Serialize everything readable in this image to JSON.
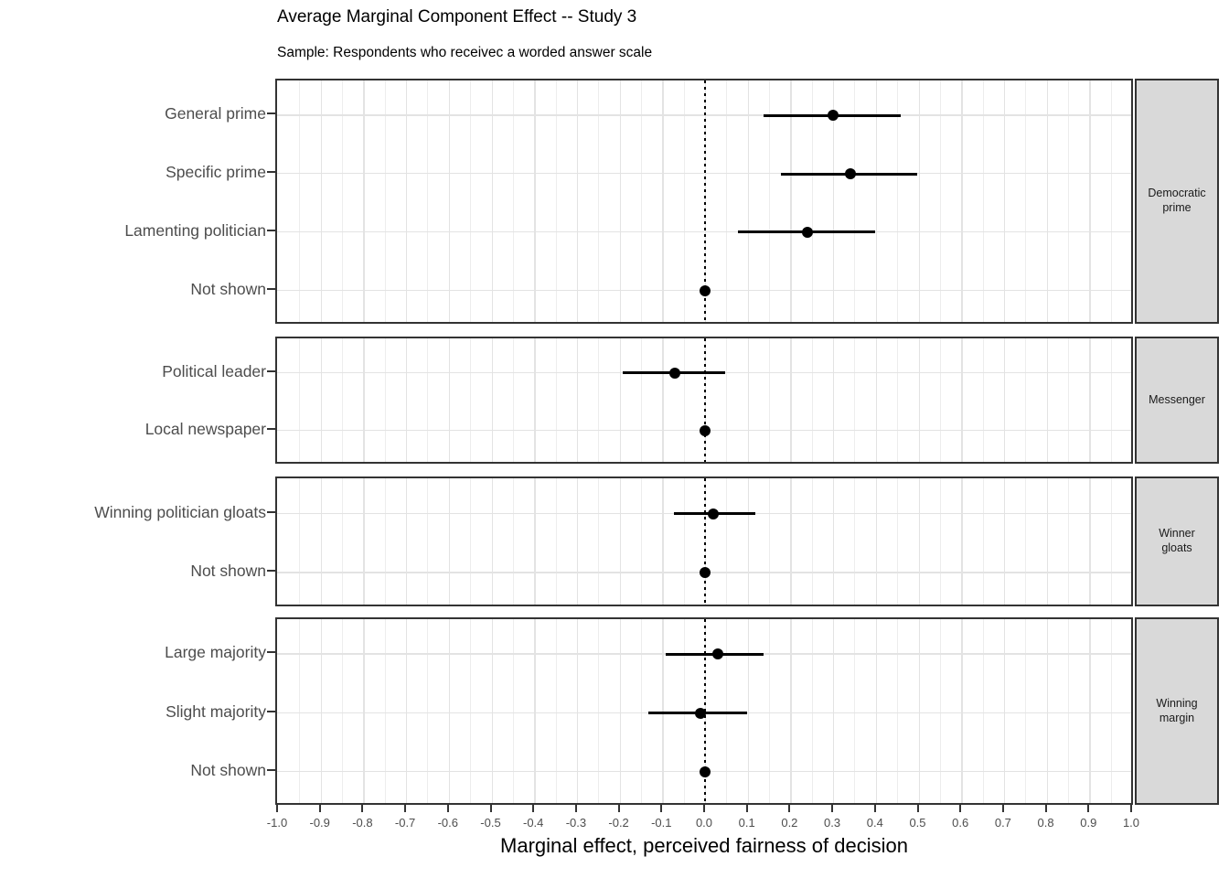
{
  "chart": {
    "title": "Average Marginal Component Effect -- Study 3",
    "subtitle": "Sample: Respondents who receivec a worded answer scale",
    "x_axis_label": "Marginal effect, perceived fairness of decision"
  },
  "chart_data": {
    "type": "scatter",
    "subtype": "coefficient-plot-with-error-bars",
    "title": "Average Marginal Component Effect -- Study 3",
    "subtitle": "Sample: Respondents who receivec a worded answer scale",
    "xlabel": "Marginal effect, perceived fairness of decision",
    "ylabel": "",
    "legend": "none",
    "grid": "major vertical every 0.1, minor every 0.05, horizontal line per row",
    "zero_reference_line": 0.0,
    "x_axis": {
      "min": -1.0,
      "max": 1.0,
      "step": 0.1,
      "tick_decimals": 1
    },
    "facets": [
      {
        "label": "Democratic prime",
        "strip_lines": [
          "Democratic",
          "prime"
        ],
        "rows": [
          {
            "label": "General prime",
            "estimate": 0.3,
            "ci_low": 0.14,
            "ci_high": 0.46
          },
          {
            "label": "Specific prime",
            "estimate": 0.34,
            "ci_low": 0.18,
            "ci_high": 0.5
          },
          {
            "label": "Lamenting politician",
            "estimate": 0.24,
            "ci_low": 0.08,
            "ci_high": 0.4
          },
          {
            "label": "Not shown",
            "estimate": 0.0,
            "ci_low": 0.0,
            "ci_high": 0.0
          }
        ]
      },
      {
        "label": "Messenger",
        "strip_lines": [
          "Messenger"
        ],
        "rows": [
          {
            "label": "Political leader",
            "estimate": -0.07,
            "ci_low": -0.19,
            "ci_high": 0.05
          },
          {
            "label": "Local newspaper",
            "estimate": 0.0,
            "ci_low": 0.0,
            "ci_high": 0.0
          }
        ]
      },
      {
        "label": "Winner gloats",
        "strip_lines": [
          "Winner",
          "gloats"
        ],
        "rows": [
          {
            "label": "Winning politician gloats",
            "estimate": 0.02,
            "ci_low": -0.07,
            "ci_high": 0.12
          },
          {
            "label": "Not shown",
            "estimate": 0.0,
            "ci_low": 0.0,
            "ci_high": 0.0
          }
        ]
      },
      {
        "label": "Winning margin",
        "strip_lines": [
          "Winning",
          "margin"
        ],
        "rows": [
          {
            "label": "Large majority",
            "estimate": 0.03,
            "ci_low": -0.09,
            "ci_high": 0.14
          },
          {
            "label": "Slight majority",
            "estimate": -0.01,
            "ci_low": -0.13,
            "ci_high": 0.1
          },
          {
            "label": "Not shown",
            "estimate": 0.0,
            "ci_low": 0.0,
            "ci_high": 0.0
          }
        ]
      }
    ]
  },
  "colors": {
    "data": "#000000",
    "panel_border": "#333333",
    "strip_background": "#d9d9d9",
    "grid_major": "#e3e3e3",
    "grid_minor": "#ededed",
    "axis_text": "#4d4d4d",
    "background": "#ffffff"
  }
}
